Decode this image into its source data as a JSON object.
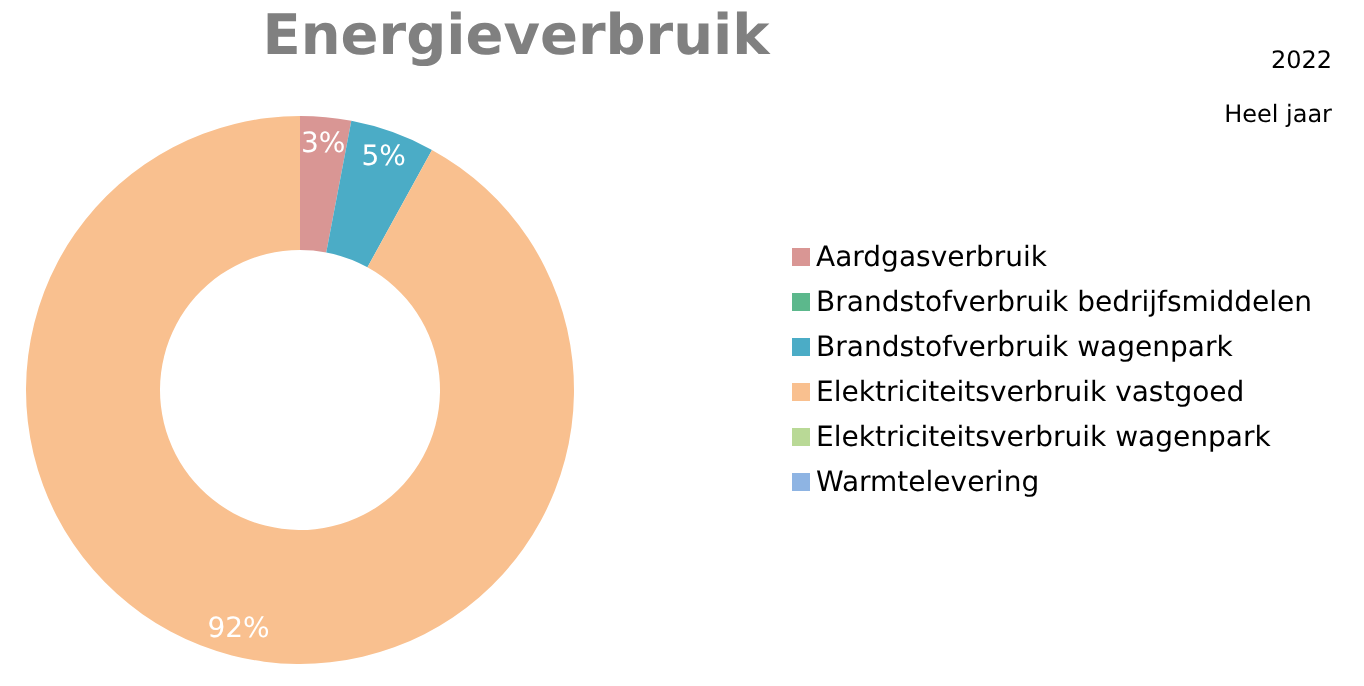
{
  "chart_data": {
    "type": "donut",
    "title": "Energieverbruik",
    "subtitle": "2022",
    "annotations": [
      "Heel jaar"
    ],
    "categories": [
      "Aardgasverbruik",
      "Brandstofverbruik bedrijfsmiddelen",
      "Brandstofverbruik wagenpark",
      "Elektriciteitsverbruik vastgoed",
      "Elektriciteitsverbruik wagenpark",
      "Warmtelevering"
    ],
    "values": [
      3,
      0,
      5,
      92,
      0,
      0
    ],
    "value_labels": [
      "3%",
      null,
      "5%",
      "92%",
      null,
      null
    ],
    "colors": [
      "#d99694",
      "#5cb88c",
      "#4bacc6",
      "#f9c08f",
      "#b9d996",
      "#8eb4e3"
    ],
    "legend": "right"
  }
}
